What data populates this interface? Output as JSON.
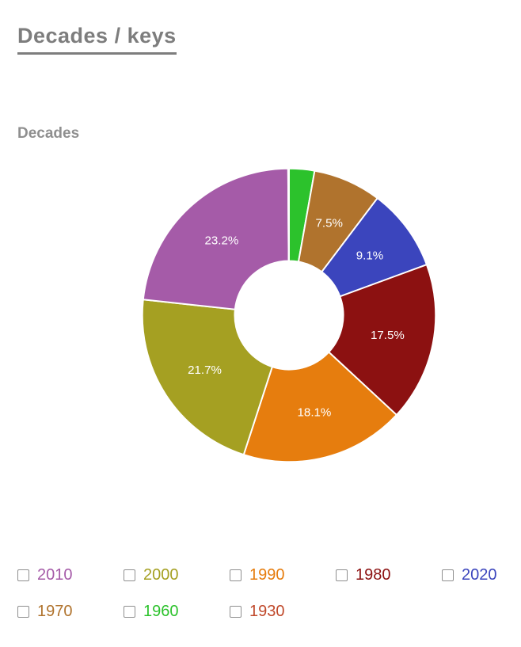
{
  "page": {
    "title": "Decades / keys",
    "section_title": "Decades"
  },
  "chart_data": {
    "type": "pie",
    "title": "Decades",
    "donut_hole_ratio": 0.37,
    "start_angle_deg": 0,
    "direction": "clockwise",
    "label_format": "percent",
    "legend_position": "bottom",
    "slices": [
      {
        "label": "1960",
        "value": 2.8,
        "color": "#2cc22c",
        "display_label": ""
      },
      {
        "label": "1970",
        "value": 7.5,
        "color": "#b0732d",
        "display_label": "7.5%"
      },
      {
        "label": "2020",
        "value": 9.1,
        "color": "#3b45bd",
        "display_label": "9.1%"
      },
      {
        "label": "1980",
        "value": 17.5,
        "color": "#8c1111",
        "display_label": "17.5%"
      },
      {
        "label": "1990",
        "value": 18.1,
        "color": "#e67d0e",
        "display_label": "18.1%"
      },
      {
        "label": "2000",
        "value": 21.7,
        "color": "#a5a022",
        "display_label": "21.7%"
      },
      {
        "label": "2010",
        "value": 23.2,
        "color": "#a55ba8",
        "display_label": "23.2%"
      },
      {
        "label": "1930",
        "value": 0.1,
        "color": "#c0492b",
        "display_label": ""
      }
    ]
  },
  "legend": {
    "rows": [
      [
        {
          "label": "2010",
          "color": "#a55ba8",
          "checked": false
        },
        {
          "label": "2000",
          "color": "#a5a022",
          "checked": false
        },
        {
          "label": "1990",
          "color": "#e67d0e",
          "checked": false
        },
        {
          "label": "1980",
          "color": "#8c1111",
          "checked": false
        },
        {
          "label": "2020",
          "color": "#3b45bd",
          "checked": false
        }
      ],
      [
        {
          "label": "1970",
          "color": "#b0732d",
          "checked": false
        },
        {
          "label": "1960",
          "color": "#2cc22c",
          "checked": false
        },
        {
          "label": "1930",
          "color": "#c0492b",
          "checked": false
        }
      ]
    ]
  }
}
